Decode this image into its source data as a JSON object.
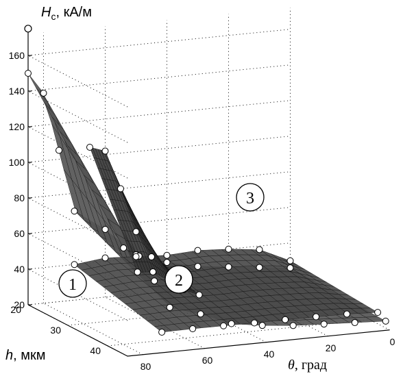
{
  "chart_data": {
    "type": "surface3d",
    "zlabel": {
      "symbol": "H",
      "sub": "c",
      "unit": ", кА/м"
    },
    "ylabel": {
      "symbol": "h",
      "unit": ", мкм"
    },
    "xlabel": {
      "symbol": "θ",
      "unit": ", град"
    },
    "z_ticks": [
      "20",
      "40",
      "60",
      "80",
      "100",
      "120",
      "140",
      "160"
    ],
    "h_ticks": [
      "20",
      "30",
      "40"
    ],
    "theta_ticks": [
      "80",
      "60",
      "40",
      "20",
      "0"
    ],
    "zlim": [
      20,
      170
    ],
    "hlim": [
      20,
      45
    ],
    "thetalim": [
      85,
      0
    ],
    "grid": true,
    "surfaces": [
      {
        "id": "1",
        "label": "1",
        "color": "#555555",
        "profile_theta": [
          85,
          80,
          75,
          70,
          60,
          50,
          40,
          30,
          20,
          10,
          0
        ],
        "profile_Hc_at_h20": [
          150,
          138,
          105,
          70,
          58,
          42,
          36,
          32,
          30,
          28,
          26
        ]
      },
      {
        "id": "2",
        "label": "2",
        "color": "#4a4a4a",
        "profile_theta": [
          70,
          60,
          50,
          40,
          30,
          20,
          10,
          0
        ],
        "profile_Hc_at_h20": [
          40,
          42,
          41,
          40,
          41,
          40,
          38,
          30
        ]
      },
      {
        "id": "3",
        "label": "3",
        "color": "#3a3a3a",
        "profile_theta": [
          65,
          60,
          55,
          50,
          45
        ],
        "profile_Hc_at_h20": [
          105,
          102,
          80,
          55,
          40
        ]
      }
    ]
  }
}
